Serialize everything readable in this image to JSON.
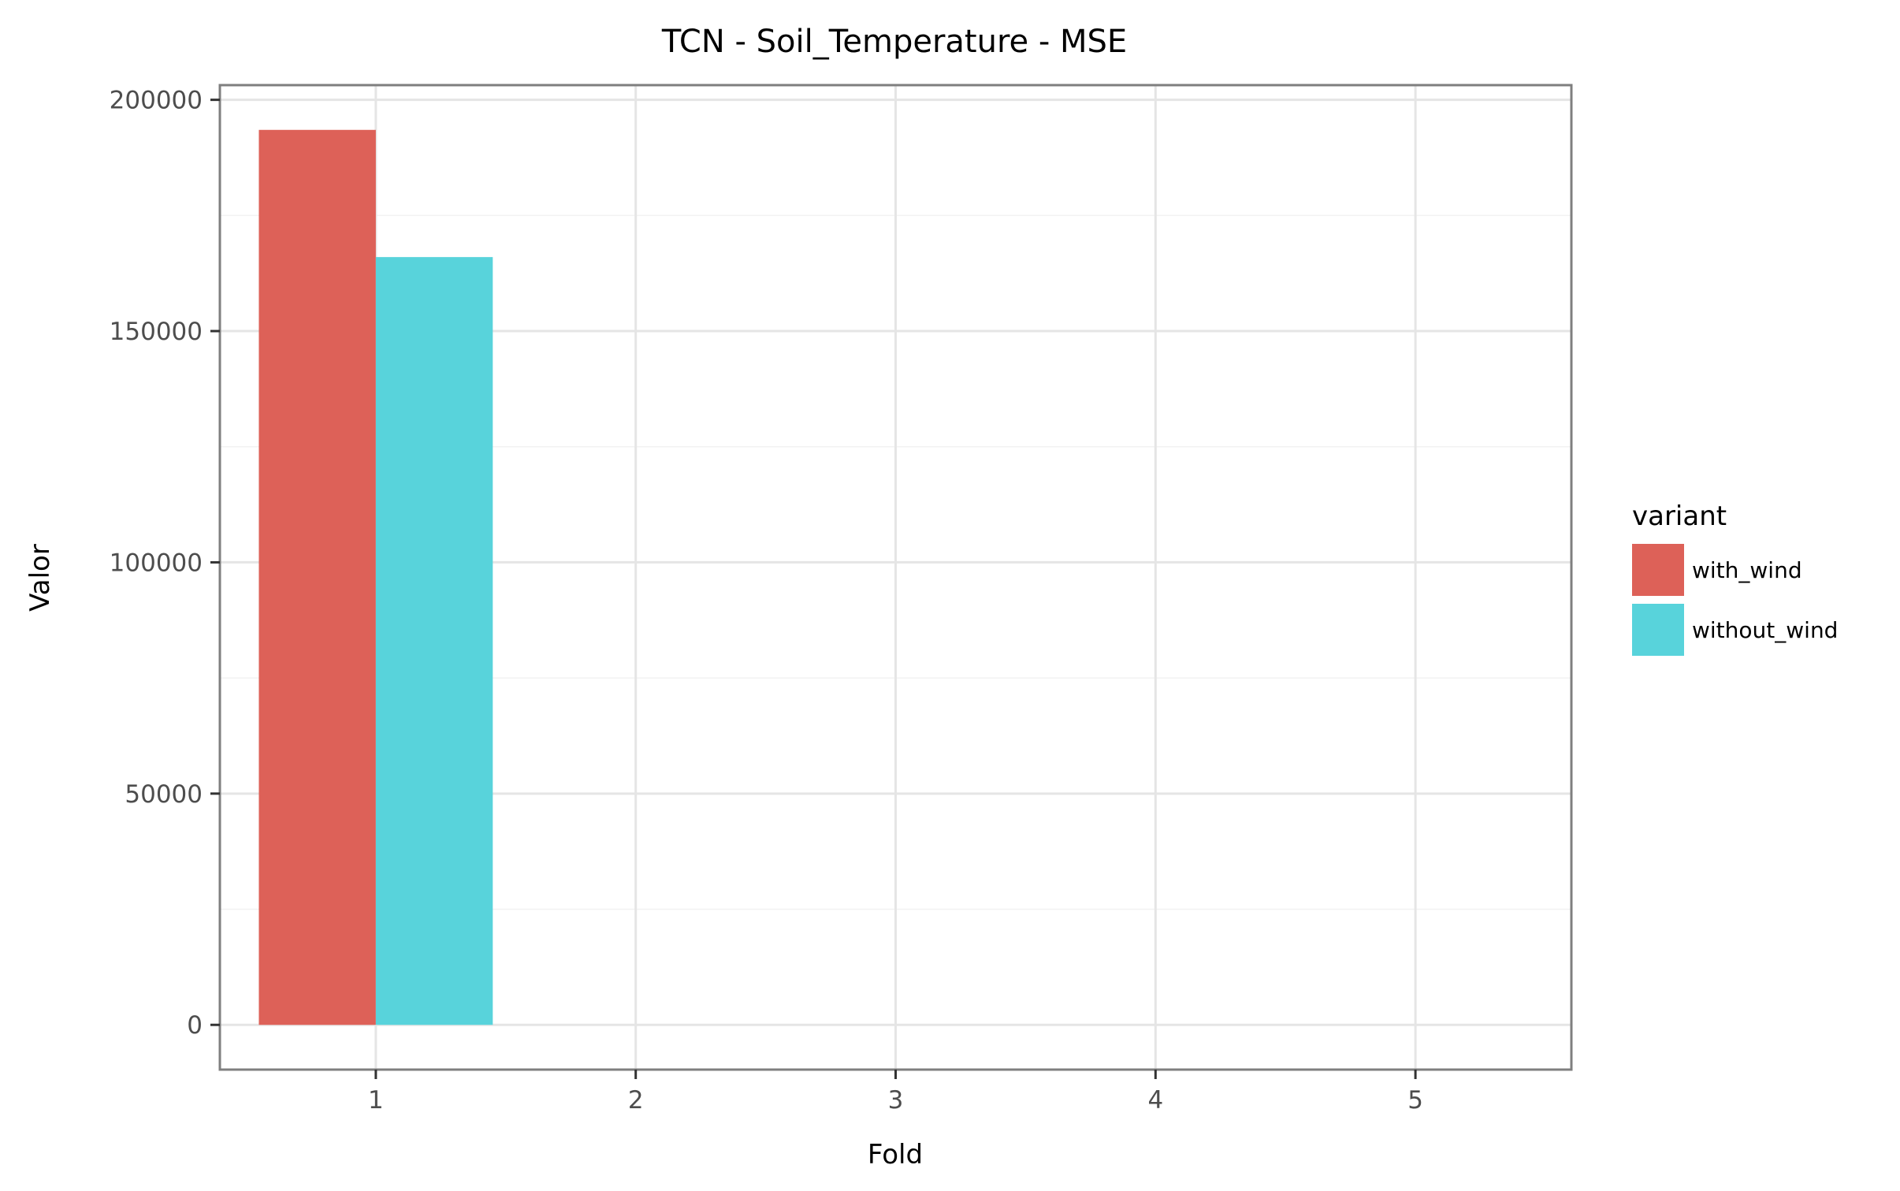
{
  "chart_data": {
    "type": "bar",
    "title": "TCN - Soil_Temperature - MSE",
    "xlabel": "Fold",
    "ylabel": "Valor",
    "x_ticks": [
      "1",
      "2",
      "3",
      "4",
      "5"
    ],
    "xlim": [
      0.4,
      5.6
    ],
    "y_ticks": [
      0,
      50000,
      100000,
      150000,
      200000
    ],
    "y_tick_labels": [
      "0",
      "50000",
      "100000",
      "150000",
      "200000"
    ],
    "ylim": [
      -9675,
      203175
    ],
    "grid": true,
    "legend": {
      "title": "variant",
      "position": "right"
    },
    "series": [
      {
        "name": "with_wind",
        "color": "#dd6158",
        "values": [
          193500
        ]
      },
      {
        "name": "without_wind",
        "color": "#58d3db",
        "values": [
          166000
        ]
      }
    ],
    "x": [
      1
    ],
    "bar_group_width": 0.9
  }
}
